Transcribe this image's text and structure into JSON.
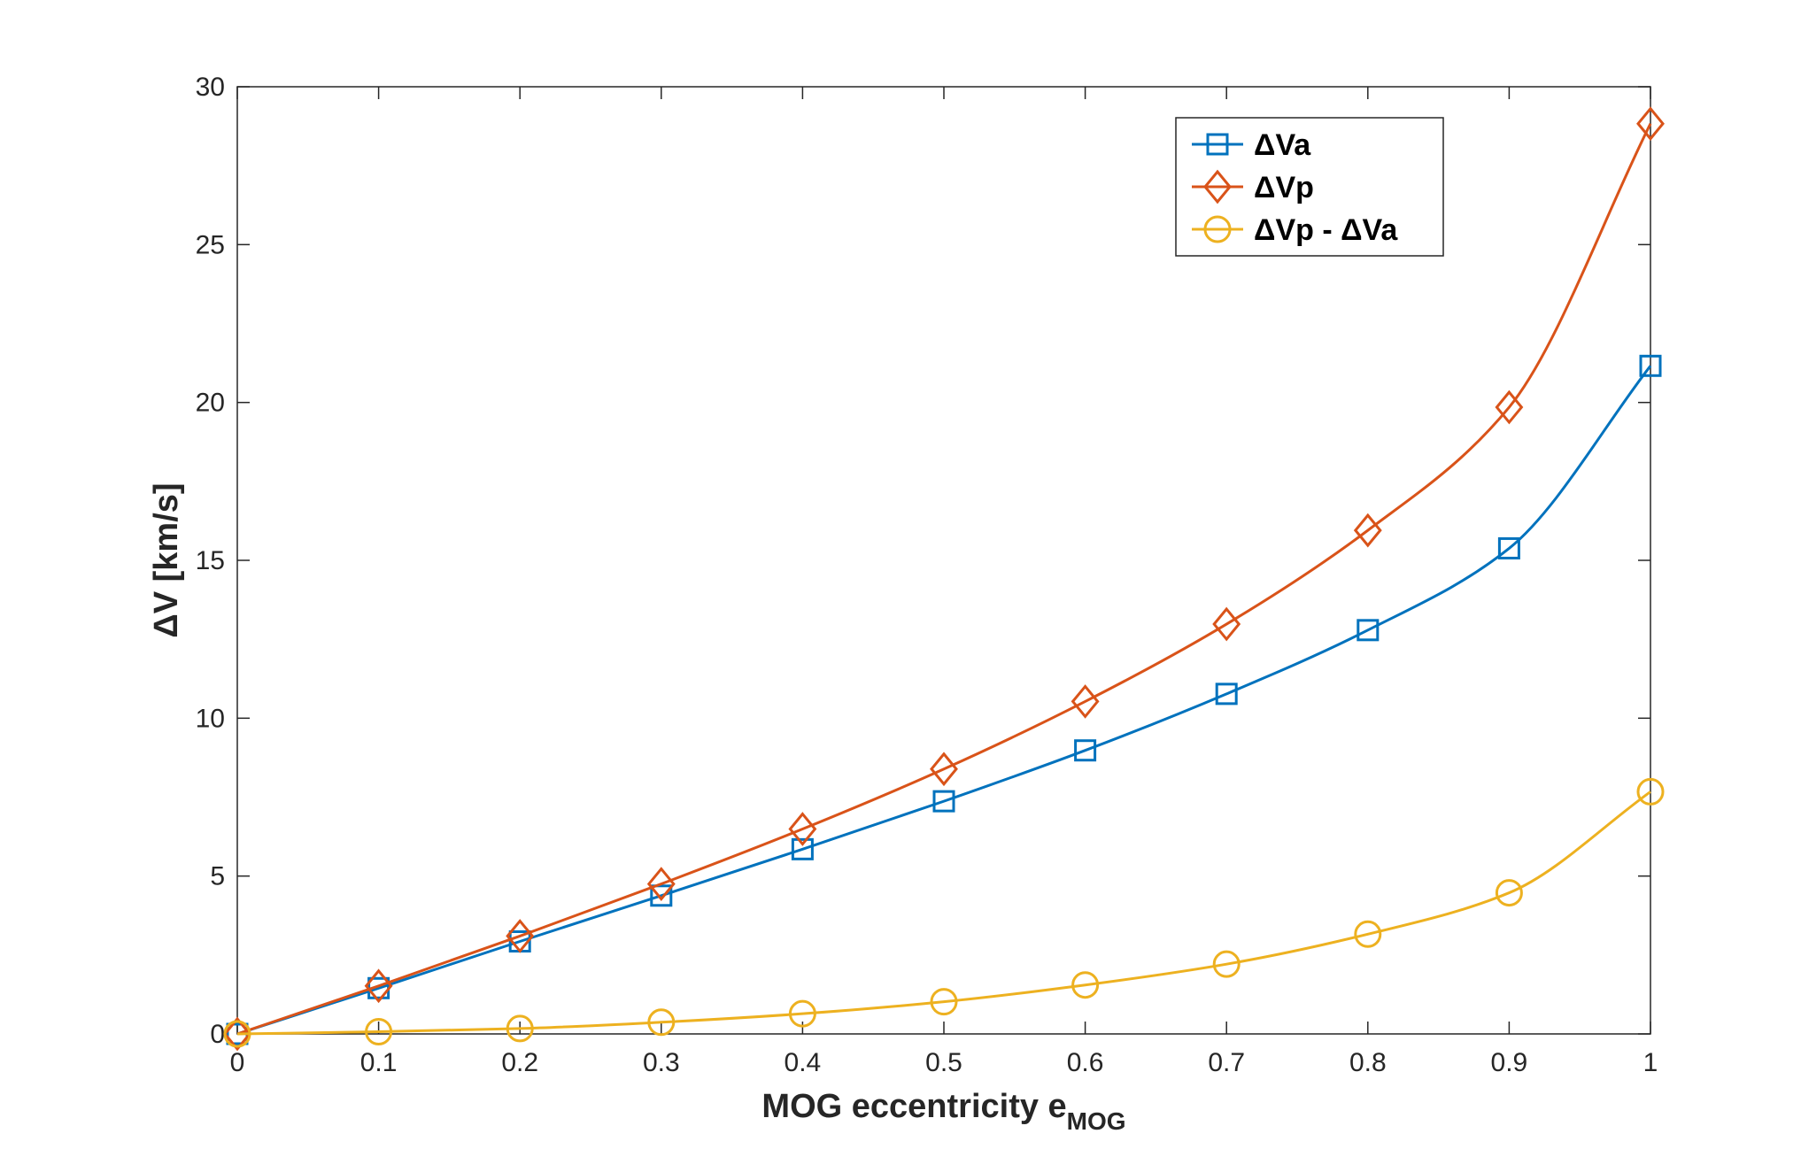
{
  "chart_data": {
    "type": "line",
    "xlabel": "MOG eccentricity e",
    "xlabel_subscript": "MOG",
    "ylabel": "ΔV [km/s]",
    "xlim": [
      0,
      1
    ],
    "ylim": [
      0,
      30
    ],
    "xticks": [
      "0",
      "0.1",
      "0.2",
      "0.3",
      "0.4",
      "0.5",
      "0.6",
      "0.7",
      "0.8",
      "0.9",
      "1"
    ],
    "yticks": [
      "0",
      "5",
      "10",
      "15",
      "20",
      "25",
      "30"
    ],
    "grid": false,
    "legend_position": "top-right",
    "x": [
      0,
      0.1,
      0.2,
      0.3,
      0.4,
      0.5,
      0.6,
      0.7,
      0.8,
      0.9,
      1.0
    ],
    "series": [
      {
        "name": "ΔVa",
        "color": "#0072BD",
        "marker": "square",
        "values": [
          0,
          1.45,
          2.93,
          4.38,
          5.85,
          7.37,
          8.98,
          10.77,
          12.79,
          15.38,
          21.16
        ]
      },
      {
        "name": "ΔVp",
        "color": "#D95319",
        "marker": "diamond",
        "values": [
          0,
          1.52,
          3.1,
          4.75,
          6.49,
          8.39,
          10.53,
          12.98,
          15.95,
          19.85,
          28.83
        ]
      },
      {
        "name": "ΔVp - ΔVa",
        "color": "#EDB120",
        "marker": "circle",
        "values": [
          0,
          0.07,
          0.17,
          0.37,
          0.64,
          1.02,
          1.55,
          2.21,
          3.16,
          4.47,
          7.67
        ]
      }
    ]
  }
}
